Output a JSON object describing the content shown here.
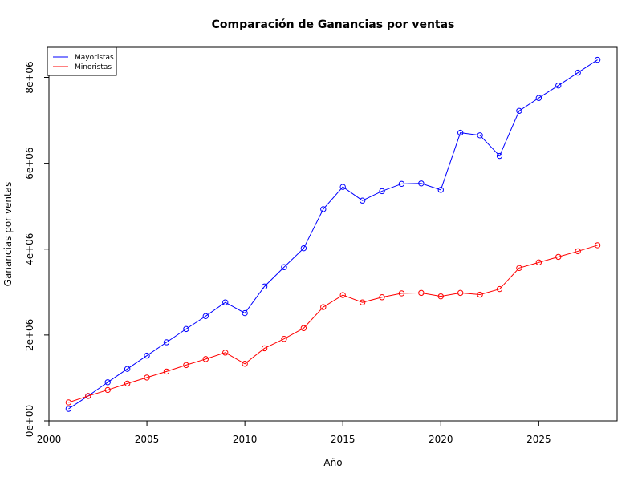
{
  "chart_data": {
    "type": "line",
    "title": "Comparación de Ganancias por ventas",
    "xlabel": "Año",
    "ylabel": "Ganancias por ventas",
    "x": [
      2001,
      2002,
      2003,
      2004,
      2005,
      2006,
      2007,
      2008,
      2009,
      2010,
      2011,
      2012,
      2013,
      2014,
      2015,
      2016,
      2017,
      2018,
      2019,
      2020,
      2021,
      2022,
      2023,
      2024,
      2025,
      2026,
      2027,
      2028
    ],
    "series": [
      {
        "name": "Mayoristas",
        "color": "#0000ff",
        "values": [
          280000,
          580000,
          900000,
          1210000,
          1520000,
          1830000,
          2140000,
          2440000,
          2760000,
          2510000,
          3130000,
          3580000,
          4020000,
          4930000,
          5450000,
          5130000,
          5350000,
          5520000,
          5530000,
          5380000,
          6710000,
          6650000,
          6170000,
          7220000,
          7520000,
          7810000,
          8110000,
          8410000
        ]
      },
      {
        "name": "Minoristas",
        "color": "#ff0000",
        "values": [
          430000,
          580000,
          720000,
          870000,
          1010000,
          1150000,
          1300000,
          1440000,
          1590000,
          1330000,
          1690000,
          1910000,
          2160000,
          2650000,
          2930000,
          2760000,
          2880000,
          2970000,
          2980000,
          2900000,
          2980000,
          2940000,
          3070000,
          3560000,
          3690000,
          3820000,
          3950000,
          4090000
        ]
      }
    ],
    "xlim": [
      2000,
      2029
    ],
    "ylim": [
      0,
      8700000
    ],
    "x_ticks": [
      2000,
      2005,
      2010,
      2015,
      2020,
      2025
    ],
    "x_tick_labels": [
      "2000",
      "2005",
      "2010",
      "2015",
      "2020",
      "2025"
    ],
    "y_ticks": [
      0,
      2000000,
      4000000,
      6000000,
      8000000
    ],
    "y_tick_labels": [
      "0e+00",
      "2e+06",
      "4e+06",
      "6e+06",
      "8e+06"
    ],
    "legend_position": "top-left",
    "grid": false,
    "markers": "open-circle"
  }
}
